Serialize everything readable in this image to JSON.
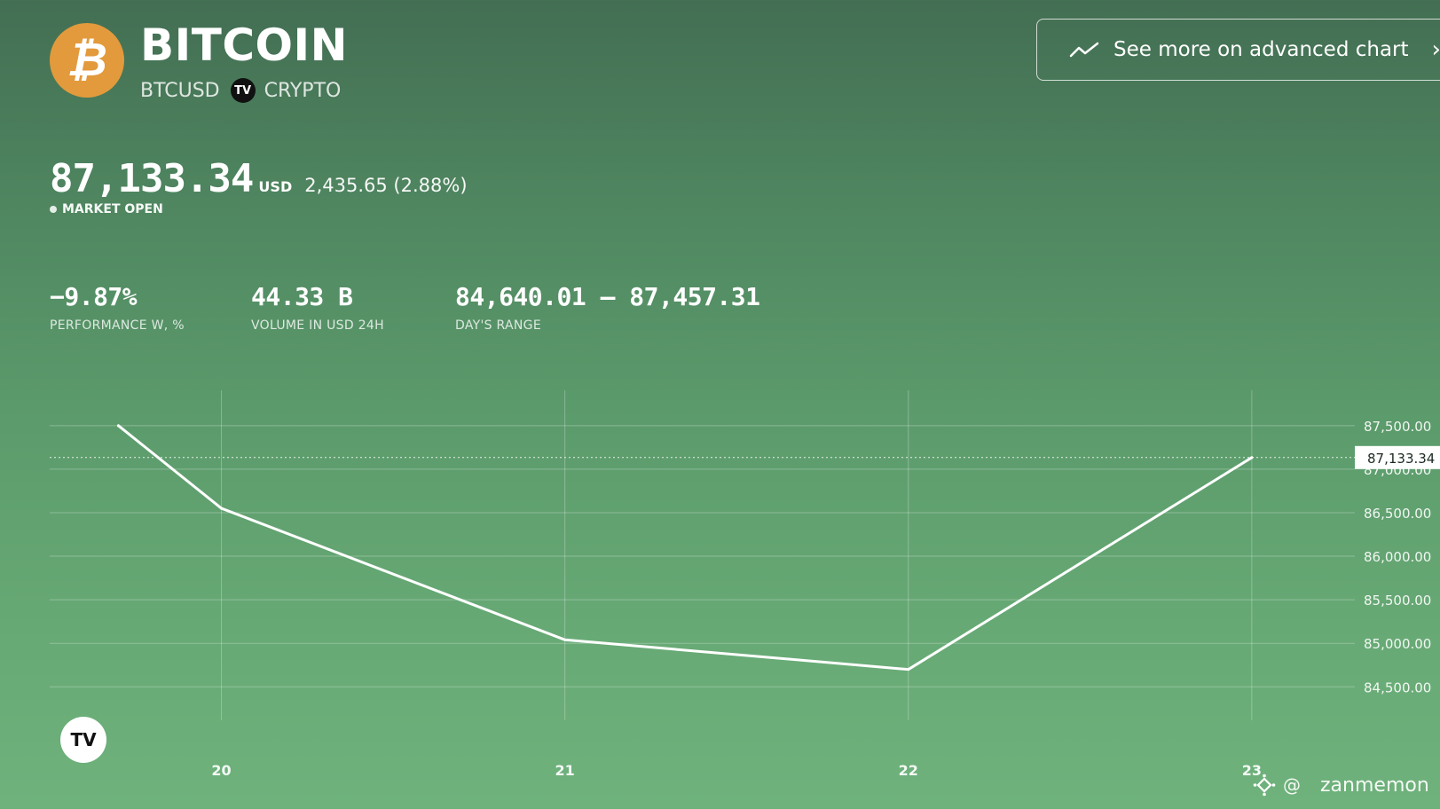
{
  "header": {
    "logo_icon": "bitcoin-icon",
    "logo_glyph": "₿",
    "title": "BITCOIN",
    "symbol": "BTCUSD",
    "exchange_badge": "TV",
    "category": "CRYPTO",
    "advanced_chart_label": "See more on advanced chart",
    "advanced_chart_icon": "trend-line-icon"
  },
  "quote": {
    "price": "87,133.34",
    "currency": "USD",
    "change": "2,435.65 (2.88%)",
    "status": "MARKET OPEN"
  },
  "stats": [
    {
      "value": "−9.87%",
      "label": "PERFORMANCE W, %"
    },
    {
      "value": "44.33 B",
      "label": "VOLUME IN USD 24H"
    },
    {
      "value": "84,640.01 — 87,457.31",
      "label": "DAY'S RANGE"
    }
  ],
  "chart_data": {
    "type": "line",
    "x": [
      19.7,
      20,
      21,
      22,
      23
    ],
    "values": [
      87500,
      86550,
      85040,
      84700,
      87133.34
    ],
    "xticks": [
      "20",
      "21",
      "22",
      "23"
    ],
    "yticks": [
      "84,500.00",
      "85,000.00",
      "85,500.00",
      "86,000.00",
      "86,500.00",
      "87,000.00",
      "87,500.00"
    ],
    "current_label": "87,133.34",
    "current_value": 87133.34,
    "xlim": [
      19.5,
      23.3
    ],
    "ylim": [
      84340,
      87600
    ],
    "grid": true,
    "line_color": "#ffffff"
  },
  "watermark": {
    "text": "TV",
    "icon": "tradingview-logo-icon"
  },
  "credit": {
    "icon": "binance-icon",
    "at": "@",
    "user": "zanmemon"
  }
}
